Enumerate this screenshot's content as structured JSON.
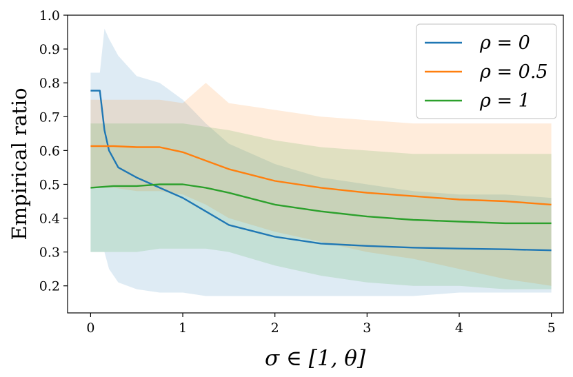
{
  "chart_data": {
    "type": "line",
    "xlabel": "σ ∈ [1, θ]",
    "ylabel": "Empirical ratio",
    "xlim": [
      -0.25,
      5.13
    ],
    "ylim": [
      0.12,
      1.0
    ],
    "xticks": [
      0,
      1,
      2,
      3,
      4,
      5
    ],
    "yticks": [
      0.2,
      0.3,
      0.4,
      0.5,
      0.6,
      0.7,
      0.8,
      0.9,
      1.0
    ],
    "grid": false,
    "legend_position": "top-right",
    "series": [
      {
        "name": "ρ = 0",
        "color": "#1f77b4",
        "x": [
          0,
          0.1,
          0.15,
          0.2,
          0.3,
          0.5,
          0.75,
          1.0,
          1.25,
          1.5,
          2.0,
          2.5,
          3.0,
          3.5,
          4.0,
          4.5,
          5.0
        ],
        "y": [
          0.777,
          0.777,
          0.66,
          0.6,
          0.55,
          0.52,
          0.49,
          0.46,
          0.42,
          0.38,
          0.345,
          0.325,
          0.318,
          0.313,
          0.31,
          0.308,
          0.305
        ],
        "low": [
          0.3,
          0.3,
          0.3,
          0.25,
          0.21,
          0.19,
          0.18,
          0.18,
          0.17,
          0.17,
          0.17,
          0.17,
          0.17,
          0.17,
          0.18,
          0.18,
          0.18
        ],
        "high": [
          0.83,
          0.83,
          0.96,
          0.93,
          0.88,
          0.82,
          0.8,
          0.75,
          0.68,
          0.62,
          0.56,
          0.52,
          0.5,
          0.48,
          0.47,
          0.47,
          0.46
        ]
      },
      {
        "name": "ρ = 0.5",
        "color": "#ff7f0e",
        "x": [
          0,
          0.25,
          0.5,
          0.75,
          1.0,
          1.25,
          1.5,
          2.0,
          2.5,
          3.0,
          3.5,
          4.0,
          4.5,
          5.0
        ],
        "y": [
          0.613,
          0.613,
          0.61,
          0.61,
          0.595,
          0.57,
          0.545,
          0.51,
          0.49,
          0.475,
          0.465,
          0.455,
          0.45,
          0.44
        ],
        "low": [
          0.49,
          0.49,
          0.48,
          0.48,
          0.47,
          0.44,
          0.4,
          0.36,
          0.33,
          0.3,
          0.28,
          0.25,
          0.22,
          0.2
        ],
        "high": [
          0.75,
          0.75,
          0.75,
          0.75,
          0.74,
          0.8,
          0.74,
          0.72,
          0.7,
          0.69,
          0.68,
          0.68,
          0.68,
          0.68
        ]
      },
      {
        "name": "ρ = 1",
        "color": "#2ca02c",
        "x": [
          0,
          0.25,
          0.5,
          0.75,
          1.0,
          1.25,
          1.5,
          2.0,
          2.5,
          3.0,
          3.5,
          4.0,
          4.5,
          5.0
        ],
        "y": [
          0.49,
          0.495,
          0.495,
          0.5,
          0.5,
          0.49,
          0.475,
          0.44,
          0.42,
          0.405,
          0.395,
          0.39,
          0.385,
          0.385
        ],
        "low": [
          0.3,
          0.3,
          0.3,
          0.31,
          0.31,
          0.31,
          0.3,
          0.26,
          0.23,
          0.21,
          0.2,
          0.2,
          0.19,
          0.19
        ],
        "high": [
          0.68,
          0.68,
          0.68,
          0.68,
          0.68,
          0.67,
          0.66,
          0.63,
          0.61,
          0.6,
          0.59,
          0.59,
          0.59,
          0.59
        ]
      }
    ]
  }
}
